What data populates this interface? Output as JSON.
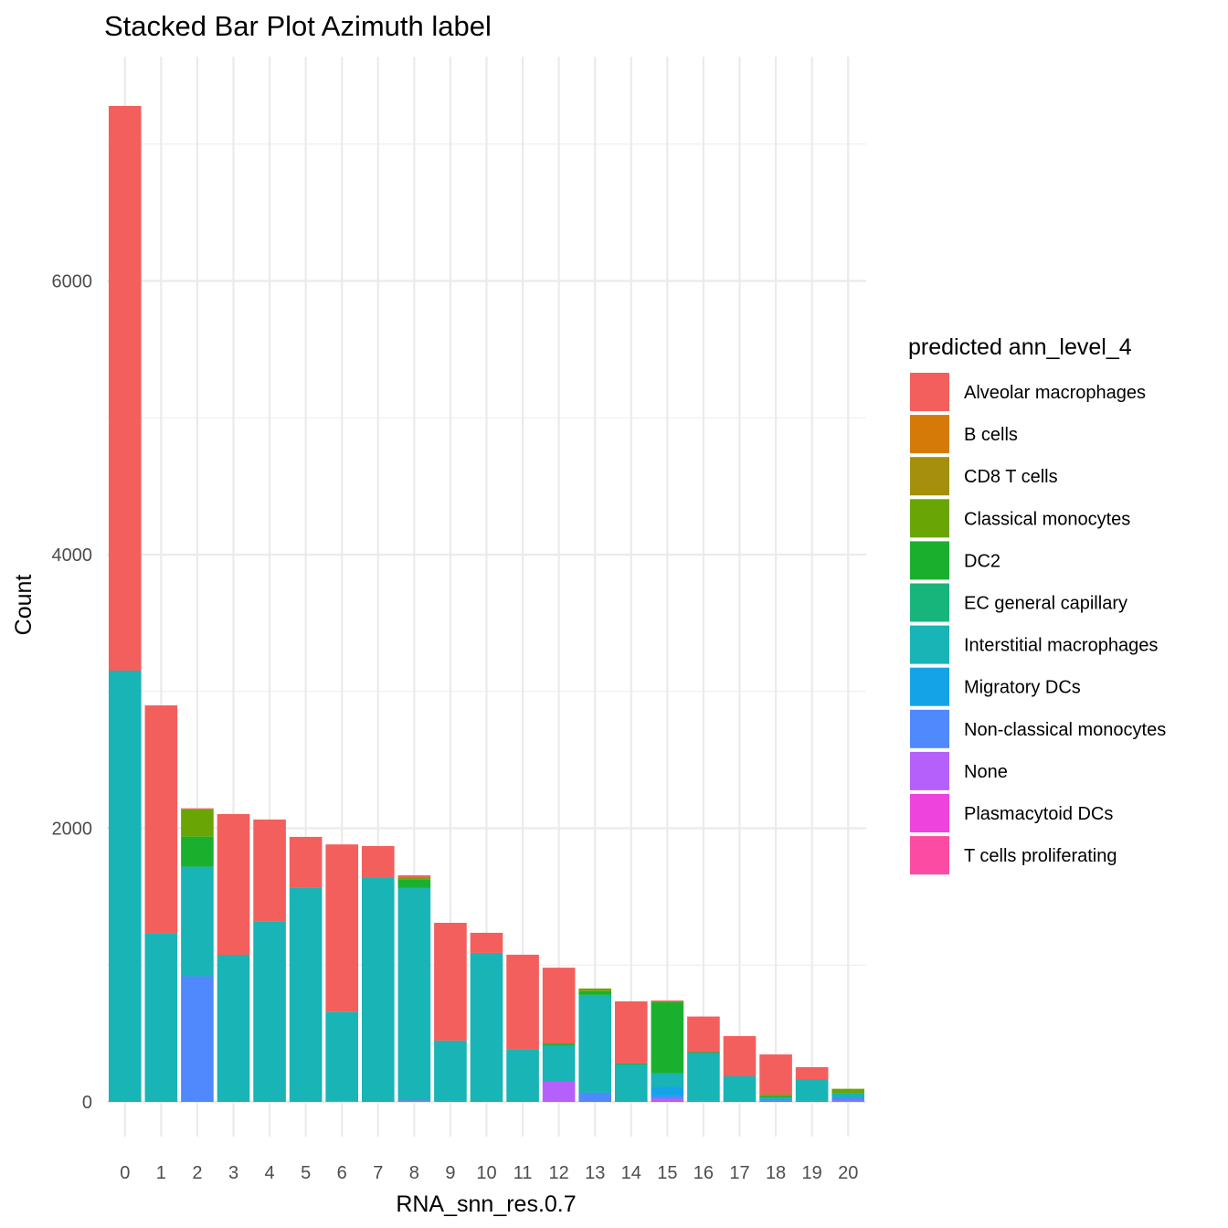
{
  "chart_data": {
    "type": "bar",
    "stacked": true,
    "title": "Stacked Bar Plot Azimuth label",
    "xlabel": "RNA_snn_res.0.7",
    "ylabel": "Count",
    "ylim": [
      -360,
      7640
    ],
    "yticks": [
      0,
      2000,
      4000,
      6000
    ],
    "ytick_labels": [
      "0",
      "2000",
      "4000",
      "6000"
    ],
    "grid": true,
    "legend_title": "predicted ann_level_4",
    "legend_position": "right",
    "categories": [
      "0",
      "1",
      "2",
      "3",
      "4",
      "5",
      "6",
      "7",
      "8",
      "9",
      "10",
      "11",
      "12",
      "13",
      "14",
      "15",
      "16",
      "17",
      "18",
      "19",
      "20"
    ],
    "series": [
      {
        "name": "Alveolar macrophages",
        "color": "#F8766D",
        "values": [
          4127,
          1669,
          7,
          1029,
          748,
          374,
          1223,
          234,
          20,
          861,
          147,
          695,
          554,
          0,
          454,
          7,
          260,
          294,
          294,
          87,
          0
        ]
      },
      {
        "name": "B cells",
        "color": "#DB8E00",
        "values": [
          0,
          0,
          0,
          0,
          0,
          0,
          0,
          0,
          0,
          0,
          0,
          0,
          0,
          0,
          0,
          0,
          0,
          0,
          0,
          0,
          0
        ]
      },
      {
        "name": "CD8 T cells",
        "color": "#AEA200",
        "values": [
          0,
          0,
          0,
          0,
          0,
          0,
          0,
          0,
          0,
          0,
          0,
          0,
          0,
          0,
          0,
          0,
          0,
          0,
          0,
          0,
          0
        ]
      },
      {
        "name": "Classical monocytes",
        "color": "#64B200",
        "values": [
          0,
          0,
          200,
          0,
          0,
          0,
          0,
          0,
          13,
          0,
          0,
          0,
          0,
          20,
          0,
          3,
          0,
          0,
          7,
          0,
          33
        ]
      },
      {
        "name": "DC2",
        "color": "#00BD5C",
        "values": [
          0,
          0,
          220,
          0,
          0,
          0,
          0,
          0,
          60,
          0,
          0,
          0,
          13,
          27,
          7,
          521,
          3,
          0,
          13,
          0,
          0
        ]
      },
      {
        "name": "EC general capillary",
        "color": "#00C1A7",
        "values": [
          0,
          0,
          0,
          0,
          0,
          0,
          0,
          0,
          0,
          0,
          0,
          0,
          0,
          0,
          0,
          0,
          0,
          0,
          0,
          0,
          0
        ]
      },
      {
        "name": "Interstitial macrophages",
        "color": "#00BADE",
        "values": [
          3152,
          1229,
          801,
          1075,
          1316,
          1563,
          654,
          1636,
          1553,
          441,
          1089,
          381,
          267,
          715,
          274,
          100,
          354,
          187,
          20,
          160,
          33
        ]
      },
      {
        "name": "Migratory DCs",
        "color": "#00A6FF",
        "values": [
          0,
          0,
          0,
          0,
          0,
          0,
          0,
          0,
          0,
          0,
          0,
          0,
          0,
          0,
          0,
          67,
          0,
          0,
          0,
          0,
          0
        ]
      },
      {
        "name": "Non-classical monocytes",
        "color": "#B385FF",
        "values": [
          0,
          0,
          918,
          0,
          0,
          0,
          5,
          0,
          0,
          7,
          0,
          0,
          0,
          67,
          0,
          20,
          7,
          0,
          13,
          7,
          20
        ]
      },
      {
        "name": "None",
        "color": "#EF67EB",
        "values": [
          0,
          0,
          0,
          0,
          0,
          0,
          0,
          0,
          10,
          0,
          0,
          0,
          147,
          0,
          0,
          13,
          0,
          0,
          0,
          0,
          10
        ]
      },
      {
        "name": "Plasmacytoid DCs",
        "color": "#FF63B6",
        "values": [
          0,
          0,
          0,
          0,
          0,
          0,
          0,
          0,
          0,
          0,
          0,
          0,
          0,
          0,
          0,
          10,
          0,
          0,
          0,
          0,
          0
        ]
      },
      {
        "name": "T cells proliferating",
        "color": "#FF4FA6",
        "values": [
          0,
          0,
          0,
          0,
          0,
          0,
          0,
          0,
          0,
          0,
          0,
          0,
          0,
          0,
          0,
          0,
          0,
          0,
          0,
          0,
          0
        ]
      }
    ],
    "render_colors": {
      "Alveolar macrophages": "#F35F5C",
      "B cells": "#D57A09",
      "CD8 T cells": "#A68F0C",
      "Classical monocytes": "#6AA506",
      "DC2": "#1AB02E",
      "EC general capillary": "#17B57C",
      "Interstitial macrophages": "#18B4B6",
      "Migratory DCs": "#15A3E8",
      "Non-classical monocytes": "#5088FE",
      "None": "#B660FC",
      "Plasmacytoid DCs": "#EE43DD",
      "T cells proliferating": "#FB4BA2"
    }
  }
}
